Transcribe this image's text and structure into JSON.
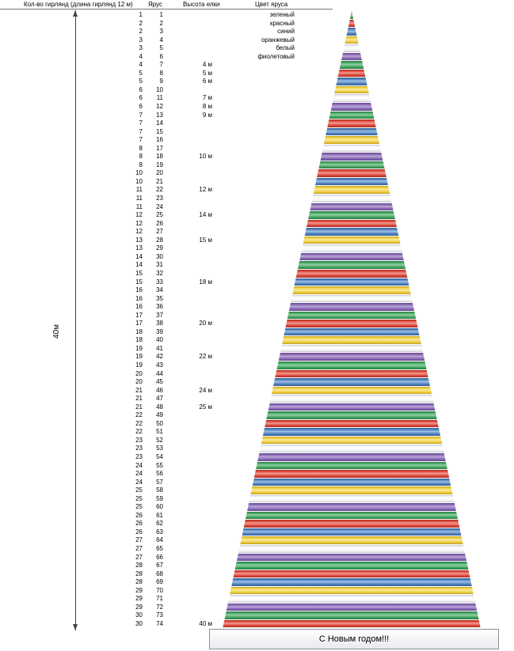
{
  "table": {
    "headers": {
      "garlands": "Кол-во гирлянд (длина гирлянд 12 м)",
      "tier": "Ярус",
      "height": "Высота елки",
      "color": "Цвет яруса"
    },
    "rows": [
      {
        "garlands": 1,
        "tier": 1,
        "height": "",
        "color": "зеленый"
      },
      {
        "garlands": 2,
        "tier": 2,
        "height": "",
        "color": "красный"
      },
      {
        "garlands": 2,
        "tier": 3,
        "height": "",
        "color": "синий"
      },
      {
        "garlands": 3,
        "tier": 4,
        "height": "",
        "color": "оранжевый"
      },
      {
        "garlands": 3,
        "tier": 5,
        "height": "",
        "color": "белый"
      },
      {
        "garlands": 4,
        "tier": 6,
        "height": "",
        "color": "фиолетовый"
      },
      {
        "garlands": 4,
        "tier": 7,
        "height": "4 м",
        "color": ""
      },
      {
        "garlands": 5,
        "tier": 8,
        "height": "5 м",
        "color": ""
      },
      {
        "garlands": 5,
        "tier": 9,
        "height": "6 м",
        "color": ""
      },
      {
        "garlands": 6,
        "tier": 10,
        "height": "",
        "color": ""
      },
      {
        "garlands": 6,
        "tier": 11,
        "height": "7 м",
        "color": ""
      },
      {
        "garlands": 6,
        "tier": 12,
        "height": "8 м",
        "color": ""
      },
      {
        "garlands": 7,
        "tier": 13,
        "height": "9 м",
        "color": ""
      },
      {
        "garlands": 7,
        "tier": 14,
        "height": "",
        "color": ""
      },
      {
        "garlands": 7,
        "tier": 15,
        "height": "",
        "color": ""
      },
      {
        "garlands": 7,
        "tier": 16,
        "height": "",
        "color": ""
      },
      {
        "garlands": 8,
        "tier": 17,
        "height": "",
        "color": ""
      },
      {
        "garlands": 8,
        "tier": 18,
        "height": "10 м",
        "color": ""
      },
      {
        "garlands": 8,
        "tier": 19,
        "height": "",
        "color": ""
      },
      {
        "garlands": 10,
        "tier": 20,
        "height": "",
        "color": ""
      },
      {
        "garlands": 10,
        "tier": 21,
        "height": "",
        "color": ""
      },
      {
        "garlands": 11,
        "tier": 22,
        "height": "12 м",
        "color": ""
      },
      {
        "garlands": 11,
        "tier": 23,
        "height": "",
        "color": ""
      },
      {
        "garlands": 11,
        "tier": 24,
        "height": "",
        "color": ""
      },
      {
        "garlands": 12,
        "tier": 25,
        "height": "14 м",
        "color": ""
      },
      {
        "garlands": 12,
        "tier": 26,
        "height": "",
        "color": ""
      },
      {
        "garlands": 12,
        "tier": 27,
        "height": "",
        "color": ""
      },
      {
        "garlands": 13,
        "tier": 28,
        "height": "15 м",
        "color": ""
      },
      {
        "garlands": 13,
        "tier": 29,
        "height": "",
        "color": ""
      },
      {
        "garlands": 14,
        "tier": 30,
        "height": "",
        "color": ""
      },
      {
        "garlands": 14,
        "tier": 31,
        "height": "",
        "color": ""
      },
      {
        "garlands": 15,
        "tier": 32,
        "height": "",
        "color": ""
      },
      {
        "garlands": 15,
        "tier": 33,
        "height": "18 м",
        "color": ""
      },
      {
        "garlands": 16,
        "tier": 34,
        "height": "",
        "color": ""
      },
      {
        "garlands": 16,
        "tier": 35,
        "height": "",
        "color": ""
      },
      {
        "garlands": 16,
        "tier": 36,
        "height": "",
        "color": ""
      },
      {
        "garlands": 17,
        "tier": 37,
        "height": "",
        "color": ""
      },
      {
        "garlands": 17,
        "tier": 38,
        "height": "20 м",
        "color": ""
      },
      {
        "garlands": 18,
        "tier": 39,
        "height": "",
        "color": ""
      },
      {
        "garlands": 18,
        "tier": 40,
        "height": "",
        "color": ""
      },
      {
        "garlands": 19,
        "tier": 41,
        "height": "",
        "color": ""
      },
      {
        "garlands": 19,
        "tier": 42,
        "height": "22 м",
        "color": ""
      },
      {
        "garlands": 19,
        "tier": 43,
        "height": "",
        "color": ""
      },
      {
        "garlands": 20,
        "tier": 44,
        "height": "",
        "color": ""
      },
      {
        "garlands": 20,
        "tier": 45,
        "height": "",
        "color": ""
      },
      {
        "garlands": 21,
        "tier": 46,
        "height": "24 м",
        "color": ""
      },
      {
        "garlands": 21,
        "tier": 47,
        "height": "",
        "color": ""
      },
      {
        "garlands": 21,
        "tier": 48,
        "height": "25 м",
        "color": ""
      },
      {
        "garlands": 22,
        "tier": 49,
        "height": "",
        "color": ""
      },
      {
        "garlands": 22,
        "tier": 50,
        "height": "",
        "color": ""
      },
      {
        "garlands": 22,
        "tier": 51,
        "height": "",
        "color": ""
      },
      {
        "garlands": 23,
        "tier": 52,
        "height": "",
        "color": ""
      },
      {
        "garlands": 23,
        "tier": 53,
        "height": "",
        "color": ""
      },
      {
        "garlands": 23,
        "tier": 54,
        "height": "",
        "color": ""
      },
      {
        "garlands": 24,
        "tier": 55,
        "height": "",
        "color": ""
      },
      {
        "garlands": 24,
        "tier": 56,
        "height": "",
        "color": ""
      },
      {
        "garlands": 24,
        "tier": 57,
        "height": "",
        "color": ""
      },
      {
        "garlands": 25,
        "tier": 58,
        "height": "",
        "color": ""
      },
      {
        "garlands": 25,
        "tier": 59,
        "height": "",
        "color": ""
      },
      {
        "garlands": 25,
        "tier": 60,
        "height": "",
        "color": ""
      },
      {
        "garlands": 26,
        "tier": 61,
        "height": "",
        "color": ""
      },
      {
        "garlands": 26,
        "tier": 62,
        "height": "",
        "color": ""
      },
      {
        "garlands": 26,
        "tier": 63,
        "height": "",
        "color": ""
      },
      {
        "garlands": 27,
        "tier": 64,
        "height": "",
        "color": ""
      },
      {
        "garlands": 27,
        "tier": 65,
        "height": "",
        "color": ""
      },
      {
        "garlands": 27,
        "tier": 66,
        "height": "",
        "color": ""
      },
      {
        "garlands": 28,
        "tier": 67,
        "height": "",
        "color": ""
      },
      {
        "garlands": 28,
        "tier": 68,
        "height": "",
        "color": ""
      },
      {
        "garlands": 28,
        "tier": 69,
        "height": "",
        "color": ""
      },
      {
        "garlands": 29,
        "tier": 70,
        "height": "",
        "color": ""
      },
      {
        "garlands": 29,
        "tier": 71,
        "height": "",
        "color": ""
      },
      {
        "garlands": 29,
        "tier": 72,
        "height": "",
        "color": ""
      },
      {
        "garlands": 30,
        "tier": 73,
        "height": "",
        "color": ""
      },
      {
        "garlands": 30,
        "tier": 74,
        "height": "40 м",
        "color": ""
      }
    ]
  },
  "legend_order": [
    "зеленый",
    "красный",
    "синий",
    "оранжевый",
    "белый",
    "фиолетовый"
  ],
  "colors": {
    "зеленый": {
      "base": "#43a45f",
      "dark": "#2c7a43",
      "light": "#8fd0a4"
    },
    "красный": {
      "base": "#dd473a",
      "dark": "#a52f25",
      "light": "#f09a90"
    },
    "синий": {
      "base": "#4f81bd",
      "dark": "#365f92",
      "light": "#9dbfe4"
    },
    "оранжевый": {
      "base": "#eecd3f",
      "dark": "#c3a024",
      "light": "#f9ea9a"
    },
    "белый": {
      "base": "#f3f3f7",
      "dark": "#c8c8d2",
      "light": "#ffffff"
    },
    "фиолетовый": {
      "base": "#8768b4",
      "dark": "#63478f",
      "light": "#bba6d6"
    }
  },
  "dimension": {
    "total_height_label": "40м"
  },
  "greeting": "С Новым годом!!!"
}
